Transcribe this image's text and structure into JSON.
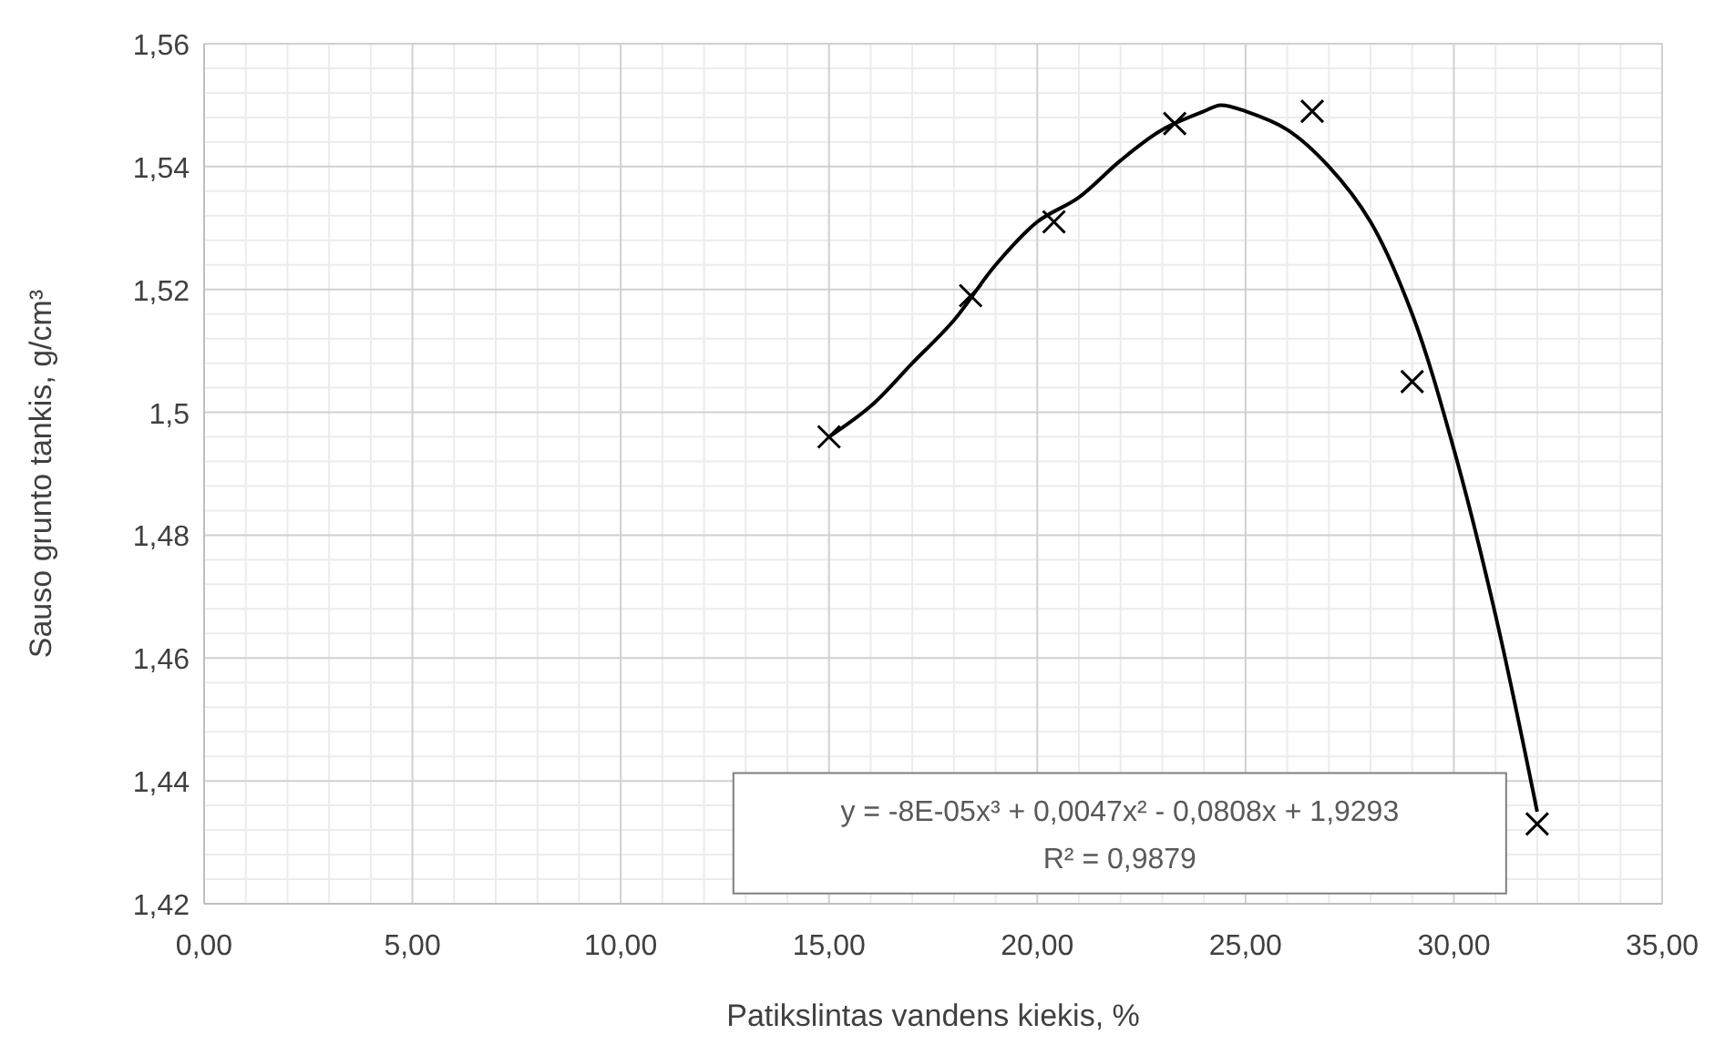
{
  "chart_data": {
    "type": "scatter",
    "xlabel": "Patikslintas vandens kiekis, %",
    "ylabel": "Sauso grunto tankis, g/cm³",
    "xlim": [
      0,
      35
    ],
    "ylim": [
      1.42,
      1.56
    ],
    "xticks": [
      {
        "value": 0,
        "label": "0,00"
      },
      {
        "value": 5,
        "label": "5,00"
      },
      {
        "value": 10,
        "label": "10,00"
      },
      {
        "value": 15,
        "label": "15,00"
      },
      {
        "value": 20,
        "label": "20,00"
      },
      {
        "value": 25,
        "label": "25,00"
      },
      {
        "value": 30,
        "label": "30,00"
      },
      {
        "value": 35,
        "label": "35,00"
      }
    ],
    "yticks": [
      {
        "value": 1.42,
        "label": "1,42"
      },
      {
        "value": 1.44,
        "label": "1,44"
      },
      {
        "value": 1.46,
        "label": "1,46"
      },
      {
        "value": 1.48,
        "label": "1,48"
      },
      {
        "value": 1.5,
        "label": "1,5"
      },
      {
        "value": 1.52,
        "label": "1,52"
      },
      {
        "value": 1.54,
        "label": "1,54"
      },
      {
        "value": 1.56,
        "label": "1,56"
      }
    ],
    "grid": true,
    "marker": "cross",
    "series": [
      {
        "color": "#000000",
        "x": [
          15.0,
          18.4,
          20.4,
          23.3,
          26.6,
          29.0,
          32.0
        ],
        "values": [
          1.496,
          1.519,
          1.531,
          1.547,
          1.549,
          1.505,
          1.433
        ]
      },
      {
        "type": "line",
        "color": "#000000",
        "line_style": "solid",
        "marker": "none",
        "x": [
          15,
          16,
          17,
          18,
          19,
          20,
          21,
          22,
          23,
          24,
          24.4,
          25,
          26,
          27,
          28,
          29,
          30,
          31,
          32
        ],
        "values": [
          1.496,
          1.501,
          1.508,
          1.515,
          1.524,
          1.531,
          1.535,
          1.541,
          1.546,
          1.549,
          1.55,
          1.549,
          1.546,
          1.54,
          1.531,
          1.516,
          1.494,
          1.467,
          1.435
        ]
      }
    ],
    "annotations": [
      "y = -8E-05x³ + 0,0047x² - 0,0808x + 1,9293",
      "R² = 0,9879"
    ]
  }
}
